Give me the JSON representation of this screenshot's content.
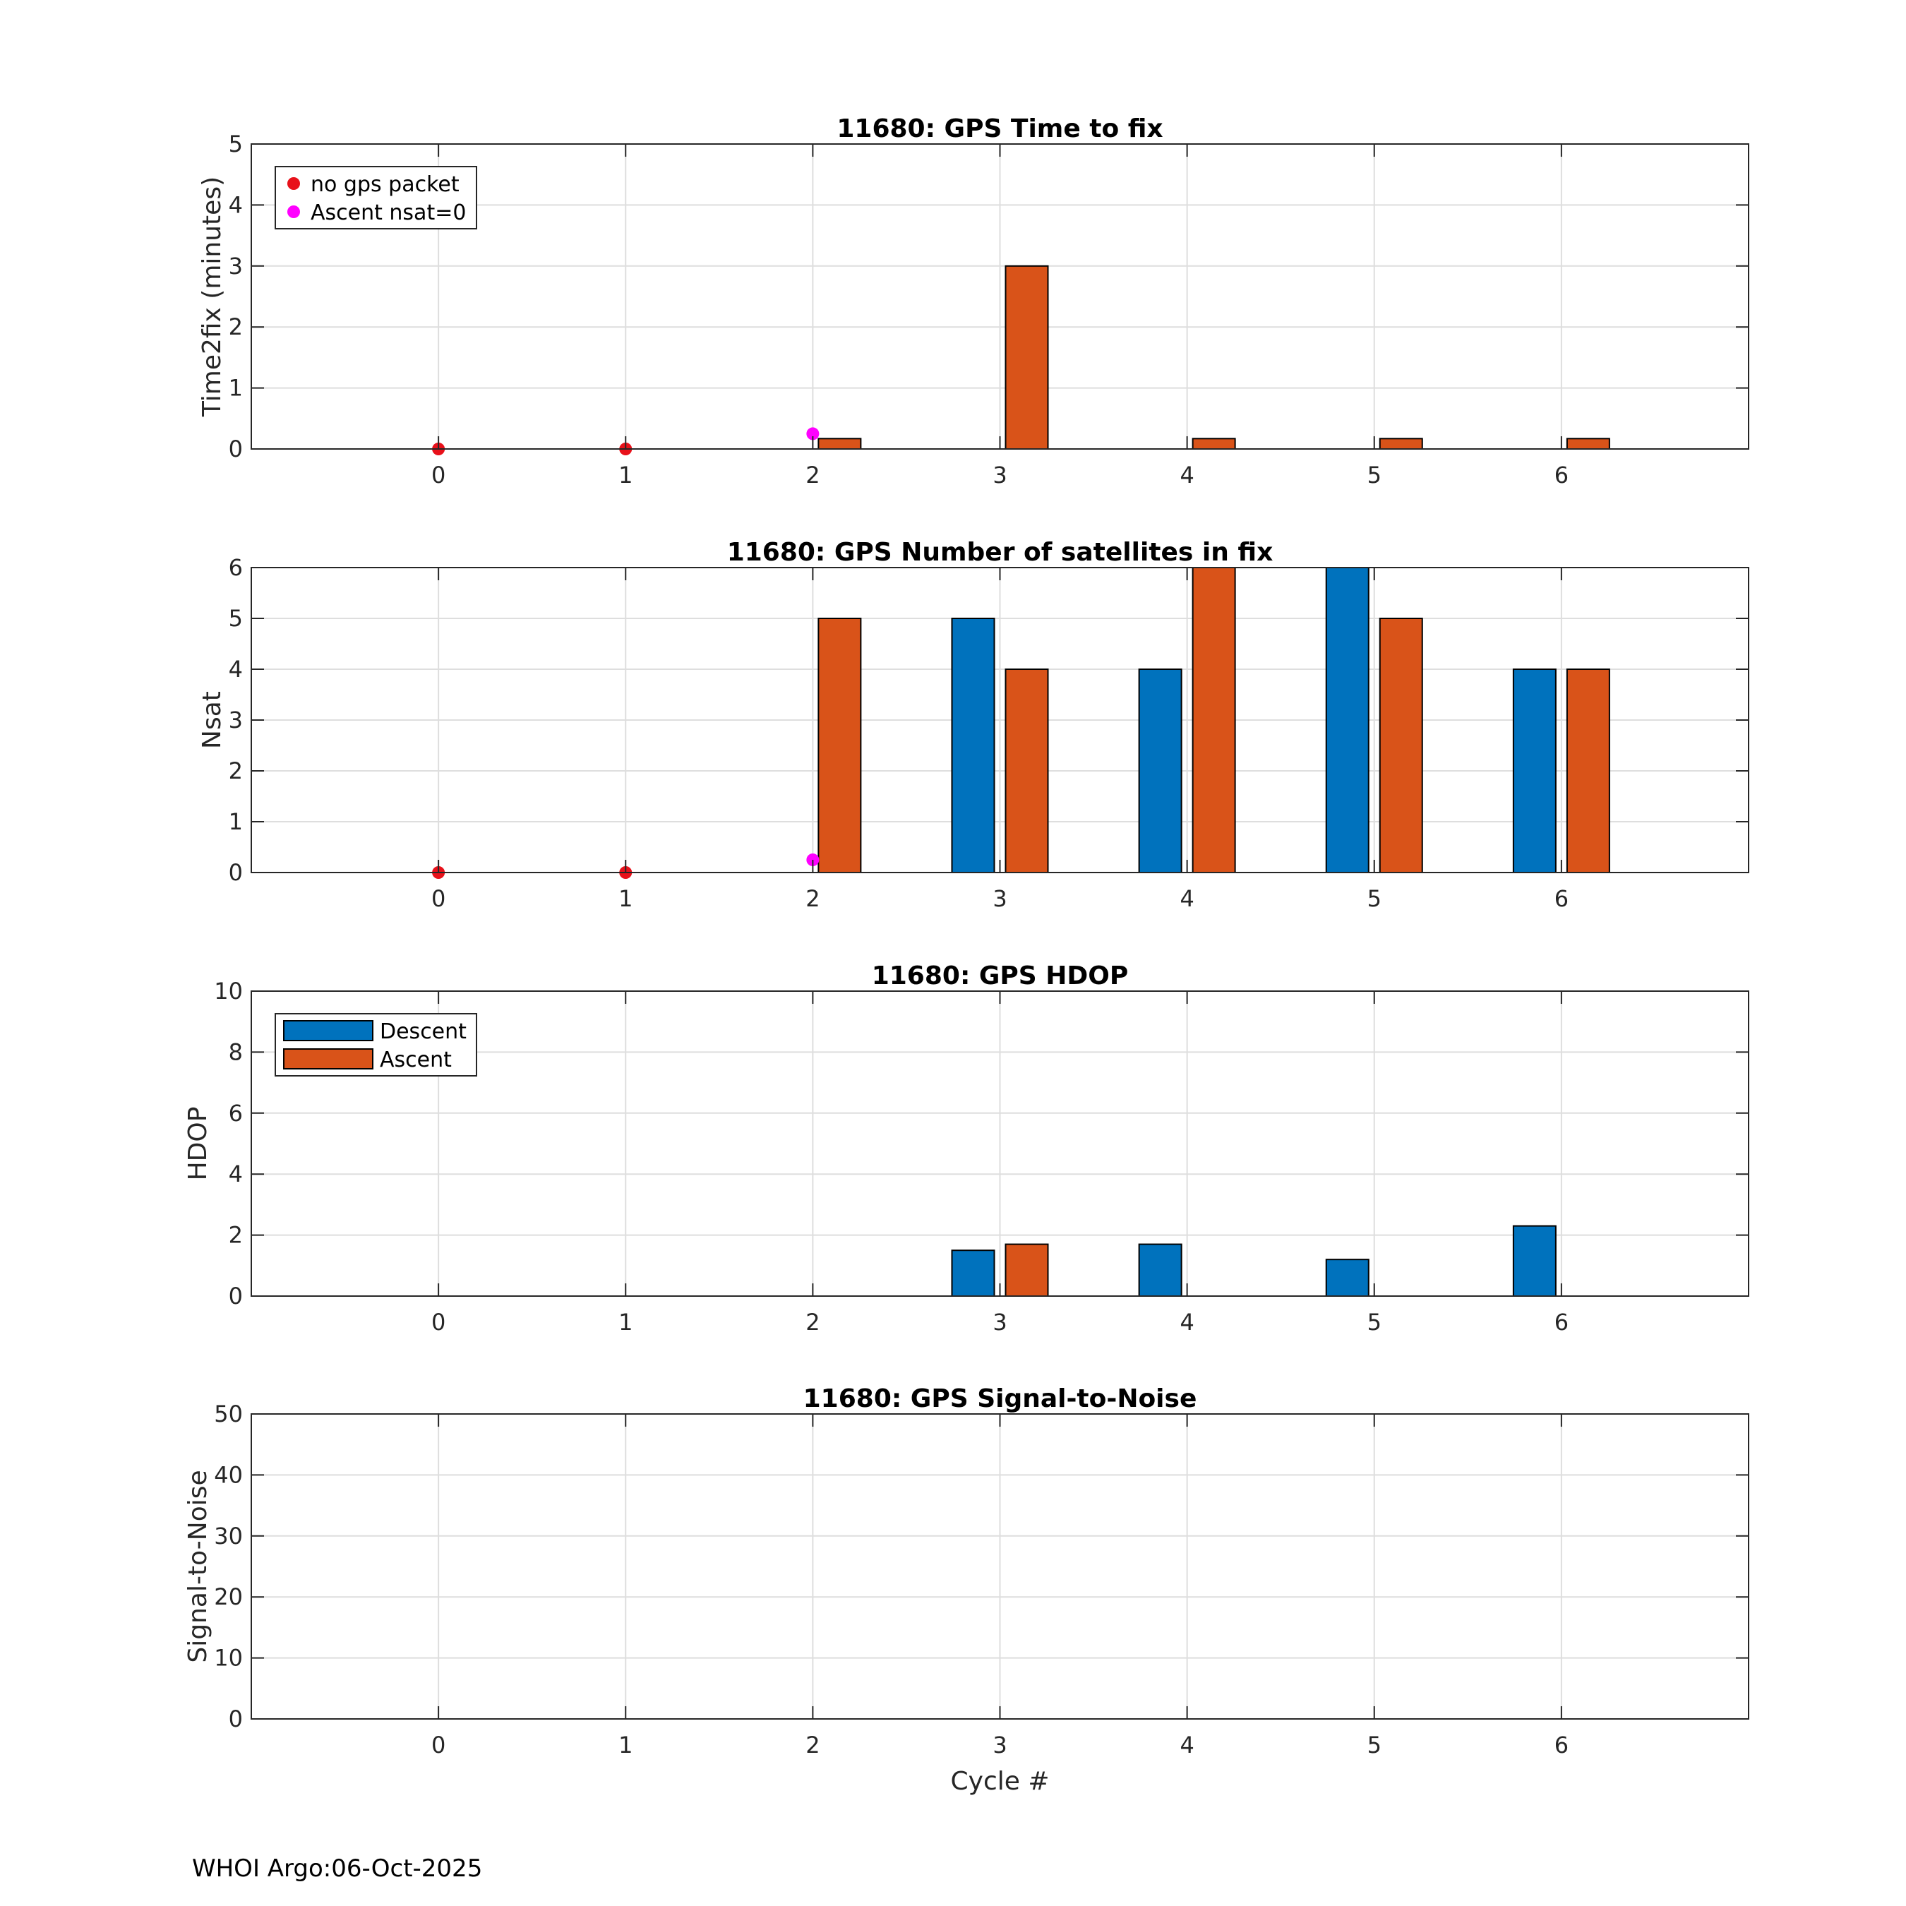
{
  "colors": {
    "descent": "#0072BD",
    "ascent": "#D95319",
    "no_gps_packet": "#E8111A",
    "ascent_nsat0": "#FF00FF",
    "grid": "#DEDEDE",
    "axis": "#262626"
  },
  "footer": "WHOI Argo:06-Oct-2025",
  "chart_data": [
    {
      "type": "bar",
      "title": "11680: GPS Time to fix",
      "xlabel": "",
      "ylabel": "Time2fix (minutes)",
      "xlim": [
        -1,
        7
      ],
      "ylim": [
        0,
        5
      ],
      "xticks": [
        "0",
        "1",
        "2",
        "3",
        "4",
        "5",
        "6"
      ],
      "yticks": [
        "0",
        "1",
        "2",
        "3",
        "4",
        "5"
      ],
      "grid": true,
      "series": [
        {
          "name": "Descent",
          "x": [],
          "values": []
        },
        {
          "name": "Ascent",
          "x": [
            2,
            3,
            4,
            5,
            6
          ],
          "values": [
            0.17,
            3,
            0.17,
            0.17,
            0.17
          ]
        }
      ],
      "markers": [
        {
          "name": "no gps packet",
          "x": [
            0,
            1
          ],
          "y": [
            0,
            0
          ]
        },
        {
          "name": "Ascent nsat=0",
          "x": [
            2
          ],
          "y": [
            0.25
          ]
        }
      ],
      "legend": {
        "placement": "top-left",
        "entries": [
          "no gps packet",
          "Ascent nsat=0"
        ]
      }
    },
    {
      "type": "bar",
      "title": "11680: GPS Number of satellites in fix",
      "xlabel": "",
      "ylabel": "Nsat",
      "xlim": [
        -1,
        7
      ],
      "ylim": [
        0,
        6
      ],
      "xticks": [
        "0",
        "1",
        "2",
        "3",
        "4",
        "5",
        "6"
      ],
      "yticks": [
        "0",
        "1",
        "2",
        "3",
        "4",
        "5",
        "6"
      ],
      "grid": true,
      "series": [
        {
          "name": "Descent",
          "x": [
            3,
            4,
            5,
            6
          ],
          "values": [
            5,
            4,
            6,
            4
          ]
        },
        {
          "name": "Ascent",
          "x": [
            2,
            3,
            4,
            5,
            6
          ],
          "values": [
            5,
            4,
            6,
            5,
            4
          ]
        }
      ],
      "markers": [
        {
          "name": "no gps packet",
          "x": [
            0,
            1
          ],
          "y": [
            0,
            0
          ]
        },
        {
          "name": "Ascent nsat=0",
          "x": [
            2
          ],
          "y": [
            0.25
          ]
        }
      ]
    },
    {
      "type": "bar",
      "title": "11680: GPS HDOP",
      "xlabel": "",
      "ylabel": "HDOP",
      "xlim": [
        -1,
        7
      ],
      "ylim": [
        0,
        10
      ],
      "xticks": [
        "0",
        "1",
        "2",
        "3",
        "4",
        "5",
        "6"
      ],
      "yticks": [
        "0",
        "2",
        "4",
        "6",
        "8",
        "10"
      ],
      "grid": true,
      "series": [
        {
          "name": "Descent",
          "x": [
            3,
            4,
            5,
            6
          ],
          "values": [
            1.5,
            1.7,
            1.2,
            2.3
          ]
        },
        {
          "name": "Ascent",
          "x": [
            3
          ],
          "values": [
            1.7
          ]
        }
      ],
      "markers": [],
      "legend": {
        "placement": "top-left",
        "entries": [
          "Descent",
          "Ascent"
        ]
      }
    },
    {
      "type": "bar",
      "title": "11680: GPS Signal-to-Noise",
      "xlabel": "Cycle #",
      "ylabel": "Signal-to-Noise",
      "xlim": [
        -1,
        7
      ],
      "ylim": [
        0,
        50
      ],
      "xticks": [
        "0",
        "1",
        "2",
        "3",
        "4",
        "5",
        "6"
      ],
      "yticks": [
        "0",
        "10",
        "20",
        "30",
        "40",
        "50"
      ],
      "grid": true,
      "series": [
        {
          "name": "Descent",
          "x": [],
          "values": []
        },
        {
          "name": "Ascent",
          "x": [],
          "values": []
        }
      ],
      "markers": []
    }
  ]
}
